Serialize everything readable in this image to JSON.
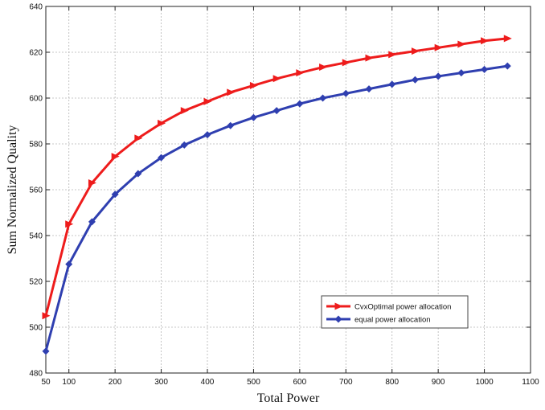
{
  "chart_data": {
    "type": "line",
    "xlabel": "Total Power",
    "ylabel": "Sum Normalized Quality",
    "xlim": [
      50,
      1100
    ],
    "ylim": [
      480,
      640
    ],
    "xticks": [
      50,
      100,
      200,
      300,
      400,
      500,
      600,
      700,
      800,
      900,
      1000,
      1100
    ],
    "yticks": [
      480,
      500,
      520,
      540,
      560,
      580,
      600,
      620,
      640
    ],
    "grid": true,
    "legend_position": "lower-right",
    "x": [
      50,
      100,
      150,
      200,
      250,
      300,
      350,
      400,
      450,
      500,
      550,
      600,
      650,
      700,
      750,
      800,
      850,
      900,
      950,
      1000,
      1050
    ],
    "series": [
      {
        "name": "CvxOptimal power allocation",
        "color": "#ee1c1c",
        "marker": "triangle-right",
        "values": [
          505,
          545,
          563,
          574.5,
          582.5,
          589,
          594.5,
          598.5,
          602.5,
          605.5,
          608.5,
          611,
          613.5,
          615.5,
          617.5,
          619,
          620.5,
          622,
          623.5,
          625,
          626
        ]
      },
      {
        "name": "equal power allocation",
        "color": "#2f3fb0",
        "marker": "diamond",
        "values": [
          489.5,
          527.5,
          546,
          558,
          567,
          574,
          579.5,
          584,
          588,
          591.5,
          594.5,
          597.5,
          600,
          602,
          604,
          606,
          608,
          609.5,
          611,
          612.5,
          614
        ]
      }
    ]
  }
}
